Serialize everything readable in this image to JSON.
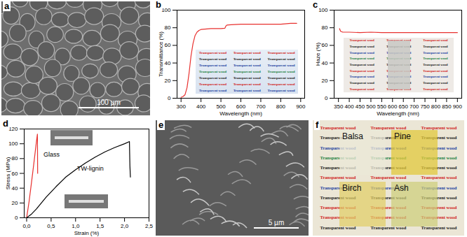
{
  "chart_data": [
    {
      "panel": "b",
      "type": "line",
      "x_label": "Wavelength (nm)",
      "y_label": "Transmittance (%)",
      "xlim": [
        280,
        920
      ],
      "xticks": [
        300,
        400,
        500,
        600,
        700,
        800,
        900
      ],
      "ylim": [
        0,
        100
      ],
      "yticks": [
        0,
        20,
        40,
        60,
        80,
        100
      ],
      "x": [
        300,
        310,
        320,
        330,
        340,
        350,
        360,
        370,
        380,
        390,
        400,
        420,
        450,
        500,
        520,
        525,
        530,
        550,
        600,
        650,
        700,
        750,
        800,
        850,
        880
      ],
      "series": [
        {
          "color": "#e8312f",
          "values": [
            1,
            2,
            4,
            12,
            28,
            48,
            62,
            71,
            75,
            77,
            78,
            78.5,
            79,
            79,
            79.5,
            82,
            83,
            83.5,
            84,
            84,
            84,
            84,
            84,
            85,
            85
          ]
        }
      ],
      "annotations": [
        "Transparent wood"
      ]
    },
    {
      "panel": "c",
      "type": "line",
      "x_label": "Wavelength (nm)",
      "y_label": "Haze (%)",
      "xlim": [
        330,
        920
      ],
      "xticks": [
        350,
        400,
        450,
        500,
        550,
        600,
        650,
        700,
        750,
        800,
        850,
        900
      ],
      "ylim": [
        0,
        100
      ],
      "yticks": [
        0,
        20,
        40,
        60,
        80,
        100
      ],
      "x": [
        355,
        360,
        370,
        380,
        400,
        450,
        500,
        550,
        600,
        650,
        700,
        750,
        800,
        850,
        900
      ],
      "series": [
        {
          "color": "#e8312f",
          "values": [
            79,
            76,
            75,
            75,
            75,
            74.5,
            75,
            74.5,
            74.5,
            74.5,
            74.5,
            74.5,
            74.5,
            74.5,
            74.5
          ]
        }
      ],
      "annotations": [
        "Transparent wood"
      ]
    },
    {
      "panel": "d",
      "type": "line",
      "x_label": "Strain (%)",
      "y_label": "Stress (MPa)",
      "xlim": [
        -0.05,
        2.5
      ],
      "xticks": [
        {
          "value": 0,
          "label": "0,0"
        },
        {
          "value": 0.5,
          "label": "0,5"
        },
        {
          "value": 1,
          "label": "1,0"
        },
        {
          "value": 1.5,
          "label": "1,5"
        },
        {
          "value": 2,
          "label": "2,0"
        },
        {
          "value": 2.5,
          "label": "2,5"
        }
      ],
      "ylim": [
        0,
        120
      ],
      "yticks": [
        0,
        20,
        40,
        60,
        80,
        100,
        120
      ],
      "series": [
        {
          "name": "Glass",
          "color": "#e8312f",
          "x": [
            0,
            0.05,
            0.1,
            0.15,
            0.2,
            0.22,
            0.225
          ],
          "values": [
            0,
            22,
            48,
            75,
            103,
            113,
            60
          ]
        },
        {
          "name": "TW-lignin",
          "color": "#000000",
          "x": [
            0,
            0.1,
            0.2,
            0.4,
            0.6,
            0.8,
            1.0,
            1.2,
            1.4,
            1.6,
            1.8,
            2.0,
            2.1,
            2.11,
            2.12
          ],
          "values": [
            0,
            5,
            12,
            28,
            42,
            55,
            65,
            74,
            82,
            89,
            95,
            100,
            103,
            70,
            55
          ]
        }
      ]
    }
  ],
  "images": [
    {
      "panel": "a",
      "scale_bar": "100 µm"
    },
    {
      "panel": "e",
      "scale_bar": "5 µm"
    },
    {
      "panel": "f",
      "background_text": "Transparent wood",
      "labels": [
        "Balsa",
        "Pine",
        "Birch",
        "Ash"
      ]
    }
  ]
}
